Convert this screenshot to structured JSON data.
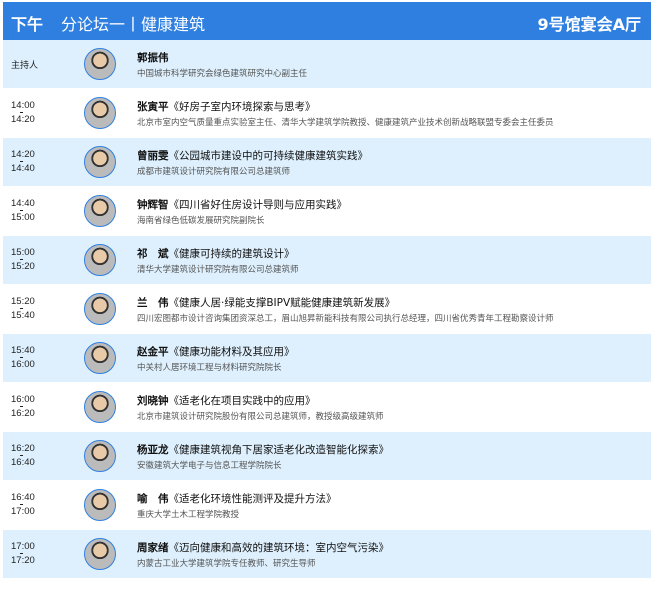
{
  "header": {
    "period": "下午",
    "title": "分论坛一丨健康建筑",
    "room": "9号馆宴会A厅"
  },
  "colors": {
    "header": "#2f7fe0",
    "row_light": "#def0fd"
  },
  "rows": [
    {
      "time": "主持人",
      "speaker": "郭振伟",
      "talk": "",
      "affiliation": "中国城市科学研究会绿色建筑研究中心副主任"
    },
    {
      "start": "14:00",
      "end": "14:20",
      "speaker": "张寅平",
      "talk": "《好房子室内环境探索与思考》",
      "affiliation": "北京市室内空气质量重点实验室主任、清华大学建筑学院教授、健康建筑产业技术创新战略联盟专委会主任委员"
    },
    {
      "start": "14:20",
      "end": "14:40",
      "speaker": "曾丽雯",
      "talk": "《公园城市建设中的可持续健康建筑实践》",
      "affiliation": "成都市建筑设计研究院有限公司总建筑师"
    },
    {
      "start": "14:40",
      "end": "15:00",
      "speaker": "钟辉智",
      "talk": "《四川省好住房设计导则与应用实践》",
      "affiliation": "海南省绿色低碳发展研究院副院长"
    },
    {
      "start": "15:00",
      "end": "15:20",
      "speaker": "祁　斌",
      "talk": "《健康可持续的建筑设计》",
      "affiliation": "清华大学建筑设计研究院有限公司总建筑师"
    },
    {
      "start": "15:20",
      "end": "15:40",
      "speaker": "兰　伟",
      "talk": "《健康人居·绿能支撑BIPV赋能健康建筑新发展》",
      "affiliation": "四川宏图都市设计咨询集团资深总工，眉山旭昇新能科技有限公司执行总经理，四川省优秀青年工程勘察设计师"
    },
    {
      "start": "15:40",
      "end": "16:00",
      "speaker": "赵金平",
      "talk": "《健康功能材料及其应用》",
      "affiliation": "中关村人居环境工程与材料研究院院长"
    },
    {
      "start": "16:00",
      "end": "16:20",
      "speaker": "刘晓钟",
      "talk": "《适老化在项目实践中的应用》",
      "affiliation": "北京市建筑设计研究院股份有限公司总建筑师，教授级高级建筑师"
    },
    {
      "start": "16:20",
      "end": "16:40",
      "speaker": "杨亚龙",
      "talk": "《健康建筑视角下居家适老化改造智能化探索》",
      "affiliation": "安徽建筑大学电子与信息工程学院院长"
    },
    {
      "start": "16:40",
      "end": "17:00",
      "speaker": "喻　伟",
      "talk": "《适老化环境性能测评及提升方法》",
      "affiliation": "重庆大学土木工程学院教授"
    },
    {
      "start": "17:00",
      "end": "17:20",
      "speaker": "周家绪",
      "talk": "《迈向健康和高效的建筑环境：室内空气污染》",
      "affiliation": "内蒙古工业大学建筑学院专任教师、研究生导师"
    }
  ]
}
